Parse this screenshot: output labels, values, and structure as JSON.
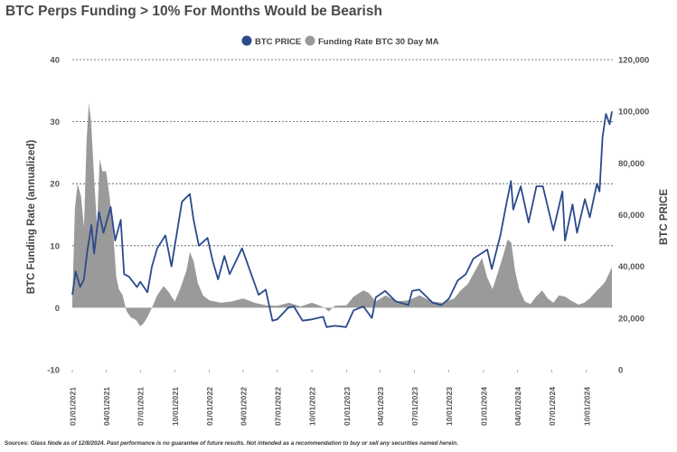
{
  "title": "BTC Perps Funding > 10% For Months Would be Bearish",
  "footer": {
    "source_label": "Sources:",
    "text": "Glass Node as of 12/8/2024. Past performance is no guarantee of future results. Not intended as a recommendation to buy or sell any securities named herein."
  },
  "colors": {
    "price": "#2b4a8c",
    "funding": "#9a9a9a",
    "grid": "#555555",
    "text": "#555555"
  },
  "chart_data": {
    "type": "area",
    "legend_position": "top-center",
    "legend": [
      {
        "name": "BTC PRICE",
        "color": "#2b4a8c"
      },
      {
        "name": "Funding Rate BTC 30 Day MA",
        "color": "#9a9a9a"
      }
    ],
    "ylabel_left": "BTC Funding Rate (annualized)",
    "ylabel_right": "BTC PRICE",
    "left_axis": {
      "min": -10,
      "max": 40,
      "ticks": [
        "-10",
        "0",
        "10",
        "20",
        "30",
        "40"
      ]
    },
    "right_axis": {
      "min": 0,
      "max": 120000,
      "ticks": [
        "0",
        "20,000",
        "40,000",
        "60,000",
        "80,000",
        "100,000",
        "120,000"
      ]
    },
    "grid": "dashed at 10, 20, 30, 40",
    "x_ticks": [
      "01/01/2021",
      "04/01/2021",
      "07/01/2021",
      "10/01/2021",
      "01/01/2022",
      "04/01/2022",
      "07/01/2022",
      "10/01/2022",
      "01/01/2023",
      "04/01/2023",
      "07/01/2023",
      "10/01/2023",
      "01/01/2024",
      "04/01/2024",
      "07/01/2024",
      "10/01/2024"
    ],
    "x_range": [
      "2021-01-01",
      "2024-12-08"
    ],
    "series": [
      {
        "name": "Funding Rate BTC 30 Day MA",
        "axis": "left",
        "style": "area",
        "points": [
          [
            "2021-01-01",
            1
          ],
          [
            "2021-01-08",
            16
          ],
          [
            "2021-01-15",
            20
          ],
          [
            "2021-01-24",
            18
          ],
          [
            "2021-02-01",
            13
          ],
          [
            "2021-02-08",
            27
          ],
          [
            "2021-02-14",
            33
          ],
          [
            "2021-02-20",
            30
          ],
          [
            "2021-03-01",
            20
          ],
          [
            "2021-03-08",
            13
          ],
          [
            "2021-03-15",
            24
          ],
          [
            "2021-03-22",
            22
          ],
          [
            "2021-04-01",
            22
          ],
          [
            "2021-04-10",
            18
          ],
          [
            "2021-04-20",
            12
          ],
          [
            "2021-04-28",
            5
          ],
          [
            "2021-05-05",
            3
          ],
          [
            "2021-05-15",
            2
          ],
          [
            "2021-05-25",
            -0.5
          ],
          [
            "2021-06-05",
            -1.5
          ],
          [
            "2021-06-20",
            -2
          ],
          [
            "2021-07-01",
            -3
          ],
          [
            "2021-07-10",
            -2.5
          ],
          [
            "2021-07-20",
            -1.5
          ],
          [
            "2021-08-01",
            0
          ],
          [
            "2021-08-15",
            2
          ],
          [
            "2021-09-01",
            3.5
          ],
          [
            "2021-09-15",
            2.5
          ],
          [
            "2021-10-01",
            1
          ],
          [
            "2021-10-15",
            3
          ],
          [
            "2021-11-01",
            6
          ],
          [
            "2021-11-10",
            9
          ],
          [
            "2021-11-20",
            7.5
          ],
          [
            "2021-12-01",
            4
          ],
          [
            "2021-12-15",
            2
          ],
          [
            "2022-01-01",
            1.2
          ],
          [
            "2022-02-01",
            0.8
          ],
          [
            "2022-03-01",
            1
          ],
          [
            "2022-04-01",
            1.5
          ],
          [
            "2022-05-01",
            0.8
          ],
          [
            "2022-06-01",
            0.4
          ],
          [
            "2022-07-01",
            0.3
          ],
          [
            "2022-08-01",
            0.8
          ],
          [
            "2022-09-01",
            0.2
          ],
          [
            "2022-10-01",
            0.8
          ],
          [
            "2022-11-01",
            0.1
          ],
          [
            "2022-11-15",
            -0.6
          ],
          [
            "2022-12-01",
            0.3
          ],
          [
            "2023-01-01",
            0.4
          ],
          [
            "2023-01-20",
            1.8
          ],
          [
            "2023-02-15",
            2.8
          ],
          [
            "2023-03-01",
            2.4
          ],
          [
            "2023-03-20",
            1
          ],
          [
            "2023-04-15",
            2
          ],
          [
            "2023-05-15",
            1
          ],
          [
            "2023-06-15",
            1.2
          ],
          [
            "2023-07-15",
            2
          ],
          [
            "2023-08-15",
            1
          ],
          [
            "2023-09-15",
            0.8
          ],
          [
            "2023-10-15",
            1.5
          ],
          [
            "2023-11-01",
            2.8
          ],
          [
            "2023-11-20",
            3.8
          ],
          [
            "2023-12-10",
            6
          ],
          [
            "2023-12-28",
            8
          ],
          [
            "2024-01-10",
            5
          ],
          [
            "2024-01-25",
            3
          ],
          [
            "2024-02-10",
            6
          ],
          [
            "2024-02-25",
            9
          ],
          [
            "2024-03-05",
            11
          ],
          [
            "2024-03-15",
            10.5
          ],
          [
            "2024-03-25",
            6
          ],
          [
            "2024-04-05",
            3
          ],
          [
            "2024-04-20",
            1
          ],
          [
            "2024-05-05",
            0.6
          ],
          [
            "2024-05-20",
            1.8
          ],
          [
            "2024-06-05",
            2.8
          ],
          [
            "2024-06-20",
            1.5
          ],
          [
            "2024-07-05",
            0.8
          ],
          [
            "2024-07-20",
            2
          ],
          [
            "2024-08-05",
            1.8
          ],
          [
            "2024-08-20",
            1.2
          ],
          [
            "2024-09-10",
            0.5
          ],
          [
            "2024-09-25",
            0.8
          ],
          [
            "2024-10-10",
            1.5
          ],
          [
            "2024-10-25",
            2.5
          ],
          [
            "2024-11-10",
            3.5
          ],
          [
            "2024-11-20",
            4.2
          ],
          [
            "2024-12-08",
            6.5
          ]
        ]
      },
      {
        "name": "BTC PRICE",
        "axis": "right",
        "style": "line",
        "points": [
          [
            "2021-01-01",
            29000
          ],
          [
            "2021-01-10",
            38000
          ],
          [
            "2021-01-22",
            32000
          ],
          [
            "2021-02-01",
            35000
          ],
          [
            "2021-02-10",
            46000
          ],
          [
            "2021-02-21",
            56000
          ],
          [
            "2021-02-28",
            45000
          ],
          [
            "2021-03-13",
            61000
          ],
          [
            "2021-03-25",
            53000
          ],
          [
            "2021-04-13",
            63000
          ],
          [
            "2021-04-25",
            50000
          ],
          [
            "2021-05-10",
            58000
          ],
          [
            "2021-05-19",
            37000
          ],
          [
            "2021-06-01",
            36000
          ],
          [
            "2021-06-22",
            32000
          ],
          [
            "2021-07-01",
            34000
          ],
          [
            "2021-07-20",
            30000
          ],
          [
            "2021-08-01",
            40000
          ],
          [
            "2021-08-15",
            47000
          ],
          [
            "2021-09-06",
            52000
          ],
          [
            "2021-09-22",
            40000
          ],
          [
            "2021-10-01",
            48000
          ],
          [
            "2021-10-20",
            65000
          ],
          [
            "2021-11-10",
            68000
          ],
          [
            "2021-11-20",
            58000
          ],
          [
            "2021-12-04",
            48000
          ],
          [
            "2021-12-27",
            51000
          ],
          [
            "2022-01-10",
            42000
          ],
          [
            "2022-01-24",
            35000
          ],
          [
            "2022-02-10",
            44000
          ],
          [
            "2022-02-24",
            37000
          ],
          [
            "2022-03-29",
            47000
          ],
          [
            "2022-04-15",
            40000
          ],
          [
            "2022-05-12",
            29000
          ],
          [
            "2022-05-31",
            31000
          ],
          [
            "2022-06-18",
            19000
          ],
          [
            "2022-07-01",
            19500
          ],
          [
            "2022-07-30",
            24000
          ],
          [
            "2022-08-14",
            24500
          ],
          [
            "2022-09-06",
            19000
          ],
          [
            "2022-10-01",
            19500
          ],
          [
            "2022-10-31",
            20500
          ],
          [
            "2022-11-09",
            16500
          ],
          [
            "2022-12-01",
            17000
          ],
          [
            "2022-12-31",
            16500
          ],
          [
            "2023-01-20",
            23000
          ],
          [
            "2023-02-15",
            24500
          ],
          [
            "2023-03-10",
            20000
          ],
          [
            "2023-03-20",
            28000
          ],
          [
            "2023-04-14",
            30500
          ],
          [
            "2023-05-12",
            26500
          ],
          [
            "2023-06-15",
            25000
          ],
          [
            "2023-06-25",
            30500
          ],
          [
            "2023-07-14",
            31000
          ],
          [
            "2023-08-18",
            26000
          ],
          [
            "2023-09-11",
            25000
          ],
          [
            "2023-10-01",
            27500
          ],
          [
            "2023-10-24",
            34500
          ],
          [
            "2023-11-15",
            37000
          ],
          [
            "2023-12-05",
            43000
          ],
          [
            "2024-01-11",
            46500
          ],
          [
            "2024-01-23",
            39000
          ],
          [
            "2024-02-15",
            52000
          ],
          [
            "2024-02-28",
            62000
          ],
          [
            "2024-03-14",
            73000
          ],
          [
            "2024-03-20",
            62000
          ],
          [
            "2024-04-09",
            71000
          ],
          [
            "2024-04-30",
            57000
          ],
          [
            "2024-05-21",
            71000
          ],
          [
            "2024-06-07",
            71000
          ],
          [
            "2024-07-05",
            54000
          ],
          [
            "2024-07-29",
            69000
          ],
          [
            "2024-08-05",
            50000
          ],
          [
            "2024-08-25",
            64000
          ],
          [
            "2024-09-06",
            53000
          ],
          [
            "2024-09-27",
            66000
          ],
          [
            "2024-10-10",
            59000
          ],
          [
            "2024-10-29",
            72000
          ],
          [
            "2024-11-05",
            69000
          ],
          [
            "2024-11-13",
            90000
          ],
          [
            "2024-11-22",
            99000
          ],
          [
            "2024-12-02",
            95000
          ],
          [
            "2024-12-08",
            100000
          ]
        ]
      }
    ]
  }
}
